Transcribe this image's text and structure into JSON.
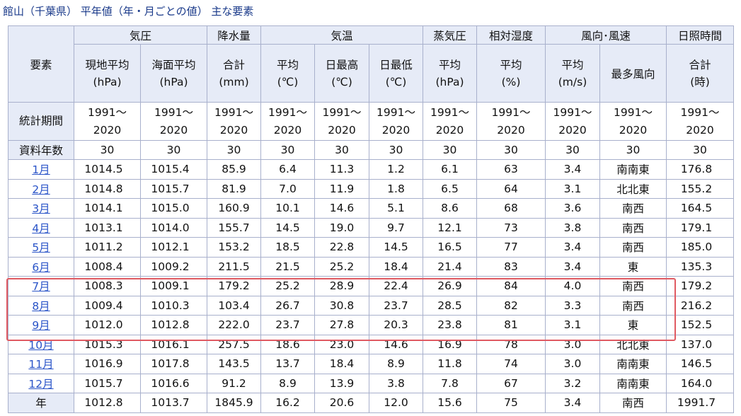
{
  "title": "館山（千葉県） 平年値（年・月ごとの値） 主な要素",
  "header": {
    "element_label": "要素",
    "groups": {
      "pressure": "気圧",
      "precip": "降水量",
      "temp": "気温",
      "vapor": "蒸気圧",
      "humidity": "相対湿度",
      "wind": "風向･風速",
      "sun": "日照時間"
    },
    "cols": {
      "p_station_1": "現地平均",
      "p_station_2": "(hPa)",
      "p_sea_1": "海面平均",
      "p_sea_2": "(hPa)",
      "precip_1": "合計",
      "precip_2": "(mm)",
      "t_avg_1": "平均",
      "t_avg_2": "(℃)",
      "t_max_1": "日最高",
      "t_max_2": "(℃)",
      "t_min_1": "日最低",
      "t_min_2": "(℃)",
      "vapor_1": "平均",
      "vapor_2": "(hPa)",
      "hum_1": "平均",
      "hum_2": "(%)",
      "wind_1": "平均",
      "wind_2": "(m/s)",
      "wind_dir": "最多風向",
      "sun_1": "合計",
      "sun_2": "(時)"
    },
    "period_label": "統計期間",
    "period_a": "1991～",
    "period_b": "2020",
    "years_label": "資料年数",
    "years_value": "30"
  },
  "rows": [
    {
      "m": "1月",
      "ps": "1014.5",
      "psl": "1015.4",
      "pr": "85.9",
      "ta": "6.4",
      "tx": "11.3",
      "tn": "1.2",
      "vp": "6.1",
      "h": "63",
      "w": "3.4",
      "wd": "南南東",
      "s": "176.8"
    },
    {
      "m": "2月",
      "ps": "1014.8",
      "psl": "1015.7",
      "pr": "81.9",
      "ta": "7.0",
      "tx": "11.9",
      "tn": "1.8",
      "vp": "6.5",
      "h": "64",
      "w": "3.1",
      "wd": "北北東",
      "s": "155.2"
    },
    {
      "m": "3月",
      "ps": "1014.1",
      "psl": "1015.0",
      "pr": "160.9",
      "ta": "10.1",
      "tx": "14.6",
      "tn": "5.1",
      "vp": "8.6",
      "h": "68",
      "w": "3.6",
      "wd": "南西",
      "s": "164.5"
    },
    {
      "m": "4月",
      "ps": "1013.1",
      "psl": "1014.0",
      "pr": "155.7",
      "ta": "14.5",
      "tx": "19.0",
      "tn": "9.7",
      "vp": "12.1",
      "h": "73",
      "w": "3.8",
      "wd": "南西",
      "s": "179.1"
    },
    {
      "m": "5月",
      "ps": "1011.2",
      "psl": "1012.1",
      "pr": "153.2",
      "ta": "18.5",
      "tx": "22.8",
      "tn": "14.5",
      "vp": "16.5",
      "h": "77",
      "w": "3.4",
      "wd": "南西",
      "s": "185.0"
    },
    {
      "m": "6月",
      "ps": "1008.4",
      "psl": "1009.2",
      "pr": "211.5",
      "ta": "21.5",
      "tx": "25.2",
      "tn": "18.4",
      "vp": "21.4",
      "h": "83",
      "w": "3.4",
      "wd": "東",
      "s": "135.3"
    },
    {
      "m": "7月",
      "ps": "1008.3",
      "psl": "1009.1",
      "pr": "179.2",
      "ta": "25.2",
      "tx": "28.9",
      "tn": "22.4",
      "vp": "26.9",
      "h": "84",
      "w": "4.0",
      "wd": "南西",
      "s": "179.2"
    },
    {
      "m": "8月",
      "ps": "1009.4",
      "psl": "1010.3",
      "pr": "103.4",
      "ta": "26.7",
      "tx": "30.8",
      "tn": "23.7",
      "vp": "28.5",
      "h": "82",
      "w": "3.3",
      "wd": "南西",
      "s": "216.2"
    },
    {
      "m": "9月",
      "ps": "1012.0",
      "psl": "1012.8",
      "pr": "222.0",
      "ta": "23.7",
      "tx": "27.8",
      "tn": "20.3",
      "vp": "23.8",
      "h": "81",
      "w": "3.1",
      "wd": "東",
      "s": "152.5"
    },
    {
      "m": "10月",
      "ps": "1015.3",
      "psl": "1016.1",
      "pr": "257.5",
      "ta": "18.6",
      "tx": "23.0",
      "tn": "14.6",
      "vp": "16.9",
      "h": "78",
      "w": "3.0",
      "wd": "北北東",
      "s": "137.0"
    },
    {
      "m": "11月",
      "ps": "1016.9",
      "psl": "1017.8",
      "pr": "143.5",
      "ta": "13.7",
      "tx": "18.4",
      "tn": "8.9",
      "vp": "11.8",
      "h": "74",
      "w": "3.0",
      "wd": "南南東",
      "s": "146.5"
    },
    {
      "m": "12月",
      "ps": "1015.7",
      "psl": "1016.6",
      "pr": "91.2",
      "ta": "8.9",
      "tx": "13.9",
      "tn": "3.8",
      "vp": "7.8",
      "h": "67",
      "w": "3.2",
      "wd": "南南東",
      "s": "164.0"
    },
    {
      "m": "年",
      "ps": "1012.8",
      "psl": "1013.7",
      "pr": "1845.9",
      "ta": "16.2",
      "tx": "20.6",
      "tn": "12.0",
      "vp": "15.6",
      "h": "75",
      "w": "3.4",
      "wd": "南西",
      "s": "1991.7"
    }
  ],
  "colors": {
    "highlight_box": "#e05a62",
    "header_bg": "#e6ebf7",
    "border": "#a8b0cc",
    "link": "#2a54c8"
  }
}
